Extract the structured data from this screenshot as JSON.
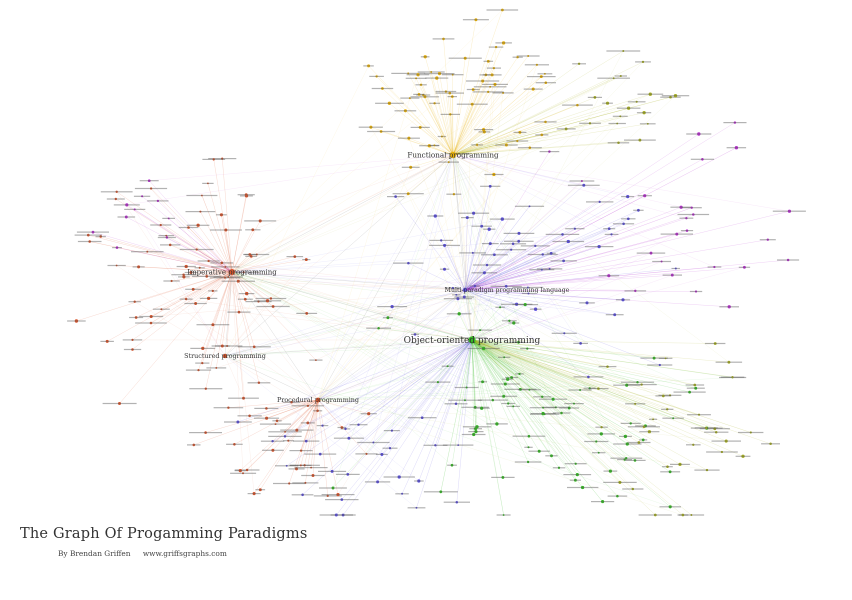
{
  "title": "The Graph Of Progamming Paradigms",
  "byline": {
    "author": "By Brendan Griffen",
    "website": "www.griffsgraphs.com"
  },
  "colors": {
    "imperative": "#d9542b",
    "functional": "#e8b10a",
    "multi": "#5b4fe0",
    "oop": "#33bb22",
    "other": "#a8b022",
    "purple": "#b830d0"
  },
  "hubs": [
    {
      "label": "Functional programming",
      "group": "functional"
    },
    {
      "label": "Imperative programming",
      "group": "imperative"
    },
    {
      "label": "Multi-paradigm programming language",
      "group": "multi"
    },
    {
      "label": "Object-oriented programming",
      "group": "oop"
    },
    {
      "label": "Structured programming",
      "group": "imperative"
    },
    {
      "label": "Procedural programming",
      "group": "imperative"
    }
  ]
}
